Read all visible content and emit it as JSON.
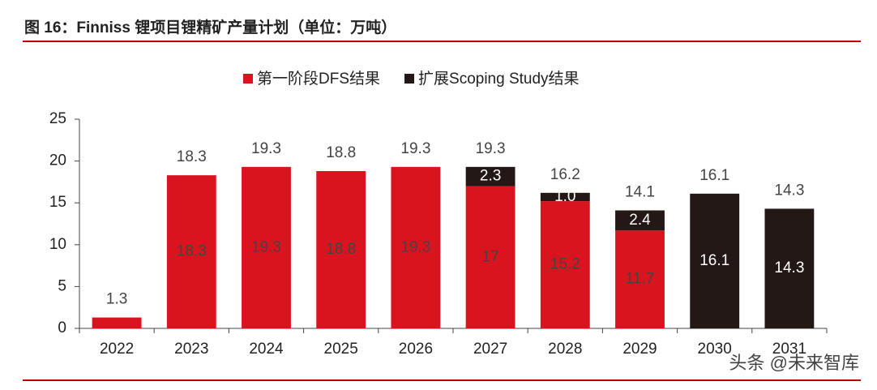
{
  "chart_data": {
    "type": "stacked_bar",
    "title": "图 16：Finniss 锂项目锂精矿产量计划（单位：万吨）",
    "categories": [
      "2022",
      "2023",
      "2024",
      "2025",
      "2026",
      "2027",
      "2028",
      "2029",
      "2030",
      "2031"
    ],
    "series": [
      {
        "name": "第一阶段DFS结果",
        "color": "#d9141e",
        "label_color": "#444444",
        "values": [
          1.3,
          18.3,
          19.3,
          18.8,
          19.3,
          17,
          15.2,
          11.7,
          null,
          null
        ],
        "value_labels": [
          null,
          "18.3",
          "19.3",
          "18.8",
          "19.3",
          "17",
          "15.2",
          "11.7",
          null,
          null
        ]
      },
      {
        "name": "扩展Scoping Study结果",
        "color": "#231815",
        "label_color": "#ffffff",
        "values": [
          null,
          null,
          null,
          null,
          null,
          2.3,
          1.0,
          2.4,
          16.1,
          14.3
        ],
        "value_labels": [
          null,
          null,
          null,
          null,
          null,
          "2.3",
          "1.0",
          "2.4",
          "16.1",
          "14.3"
        ]
      }
    ],
    "totals": [
      1.3,
      18.3,
      19.3,
      18.8,
      19.3,
      19.3,
      16.2,
      14.1,
      16.1,
      14.3
    ],
    "ylim": [
      0,
      25
    ],
    "yticks": [
      0,
      5,
      10,
      15,
      20,
      25
    ],
    "legend": "top",
    "watermark": "头条 @未来智库"
  }
}
